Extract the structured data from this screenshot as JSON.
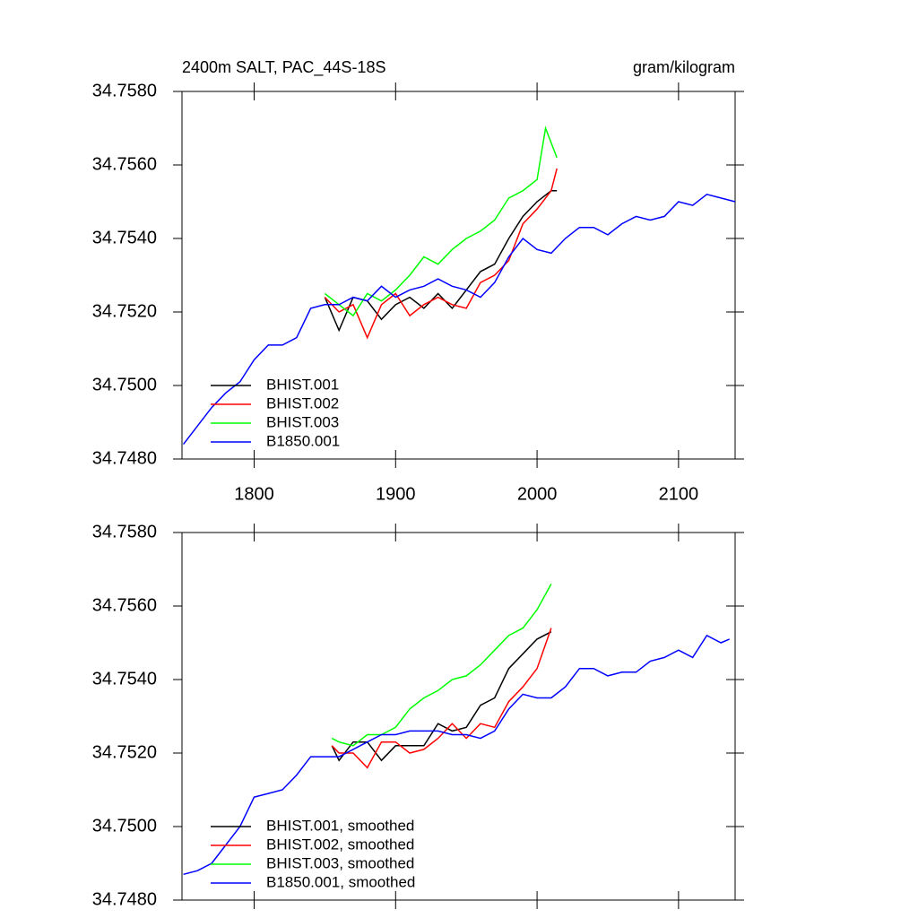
{
  "chart_data": [
    {
      "type": "line",
      "title": "2400m SALT, PAC_44S-18S",
      "units": "gram/kilogram",
      "xlim": [
        1749,
        2140
      ],
      "xticks": [
        1800,
        1900,
        2000,
        2100
      ],
      "ylim": [
        34.748,
        34.758
      ],
      "yticks": [
        {
          "value": 34.748,
          "label": "34.7480"
        },
        {
          "value": 34.75,
          "label": "34.7500"
        },
        {
          "value": 34.752,
          "label": "34.7520"
        },
        {
          "value": 34.754,
          "label": "34.7540"
        },
        {
          "value": 34.756,
          "label": "34.7560"
        },
        {
          "value": 34.758,
          "label": "34.7580"
        }
      ],
      "legend": "lower left",
      "series": [
        {
          "name": "BHIST.001",
          "color": "#000000",
          "x": [
            1850,
            1860,
            1870,
            1880,
            1890,
            1900,
            1910,
            1920,
            1930,
            1940,
            1950,
            1960,
            1970,
            1980,
            1990,
            2000,
            2010,
            2014
          ],
          "values": [
            34.7524,
            34.7515,
            34.7524,
            34.7523,
            34.7518,
            34.7522,
            34.7524,
            34.7521,
            34.7525,
            34.7521,
            34.7526,
            34.7531,
            34.7533,
            34.754,
            34.7546,
            34.755,
            34.7553,
            34.7553
          ]
        },
        {
          "name": "BHIST.002",
          "color": "#ff0000",
          "x": [
            1850,
            1860,
            1870,
            1880,
            1890,
            1900,
            1910,
            1920,
            1930,
            1940,
            1950,
            1960,
            1970,
            1980,
            1990,
            2000,
            2010,
            2014
          ],
          "values": [
            34.7524,
            34.752,
            34.7522,
            34.7513,
            34.7522,
            34.7525,
            34.7519,
            34.7522,
            34.7524,
            34.7522,
            34.7521,
            34.7528,
            34.753,
            34.7534,
            34.7544,
            34.7548,
            34.7553,
            34.7559
          ]
        },
        {
          "name": "BHIST.003",
          "color": "#00ff00",
          "x": [
            1850,
            1860,
            1870,
            1880,
            1890,
            1900,
            1910,
            1920,
            1930,
            1940,
            1950,
            1960,
            1970,
            1980,
            1990,
            2000,
            2006,
            2014
          ],
          "values": [
            34.7525,
            34.7522,
            34.7519,
            34.7525,
            34.7523,
            34.7526,
            34.753,
            34.7535,
            34.7533,
            34.7537,
            34.754,
            34.7542,
            34.7545,
            34.7551,
            34.7553,
            34.7556,
            34.757,
            34.7562
          ]
        },
        {
          "name": "B1850.001",
          "color": "#0000ff",
          "x": [
            1750,
            1760,
            1770,
            1780,
            1790,
            1800,
            1810,
            1820,
            1830,
            1840,
            1850,
            1860,
            1870,
            1880,
            1890,
            1900,
            1910,
            1920,
            1930,
            1940,
            1950,
            1960,
            1970,
            1980,
            1990,
            2000,
            2010,
            2020,
            2030,
            2040,
            2050,
            2060,
            2070,
            2080,
            2090,
            2100,
            2110,
            2120,
            2130,
            2140
          ],
          "values": [
            34.7484,
            34.7489,
            34.7494,
            34.7498,
            34.7501,
            34.7507,
            34.7511,
            34.7511,
            34.7513,
            34.7521,
            34.7522,
            34.7522,
            34.7524,
            34.7523,
            34.7527,
            34.7524,
            34.7526,
            34.7527,
            34.7529,
            34.7527,
            34.7526,
            34.7524,
            34.7528,
            34.7535,
            34.754,
            34.7537,
            34.7536,
            34.754,
            34.7543,
            34.7543,
            34.7541,
            34.7544,
            34.7546,
            34.7545,
            34.7546,
            34.755,
            34.7549,
            34.7552,
            34.7551,
            34.755
          ]
        }
      ]
    },
    {
      "type": "line",
      "xlim": [
        1749,
        2140
      ],
      "xticks": [
        1800,
        1900,
        2000,
        2100
      ],
      "ylim": [
        34.748,
        34.758
      ],
      "yticks": [
        {
          "value": 34.748,
          "label": "34.7480"
        },
        {
          "value": 34.75,
          "label": "34.7500"
        },
        {
          "value": 34.752,
          "label": "34.7520"
        },
        {
          "value": 34.754,
          "label": "34.7540"
        },
        {
          "value": 34.756,
          "label": "34.7560"
        },
        {
          "value": 34.758,
          "label": "34.7580"
        }
      ],
      "legend": "lower left",
      "series": [
        {
          "name": "BHIST.001, smoothed",
          "color": "#000000",
          "x": [
            1855,
            1860,
            1870,
            1880,
            1890,
            1900,
            1910,
            1920,
            1930,
            1940,
            1950,
            1960,
            1970,
            1980,
            1990,
            2000,
            2010
          ],
          "values": [
            34.7522,
            34.7518,
            34.7523,
            34.7523,
            34.7518,
            34.7522,
            34.7522,
            34.7522,
            34.7528,
            34.7526,
            34.7527,
            34.7533,
            34.7535,
            34.7543,
            34.7547,
            34.7551,
            34.7553
          ]
        },
        {
          "name": "BHIST.002, smoothed",
          "color": "#ff0000",
          "x": [
            1855,
            1860,
            1870,
            1880,
            1890,
            1900,
            1910,
            1920,
            1930,
            1940,
            1950,
            1960,
            1970,
            1980,
            1990,
            2000,
            2010
          ],
          "values": [
            34.7522,
            34.752,
            34.752,
            34.7516,
            34.7523,
            34.7523,
            34.752,
            34.7521,
            34.7524,
            34.7528,
            34.7524,
            34.7528,
            34.7527,
            34.7534,
            34.7538,
            34.7543,
            34.7554
          ]
        },
        {
          "name": "BHIST.003, smoothed",
          "color": "#00ff00",
          "x": [
            1855,
            1860,
            1870,
            1880,
            1890,
            1900,
            1910,
            1920,
            1930,
            1940,
            1950,
            1960,
            1970,
            1980,
            1990,
            2000,
            2010
          ],
          "values": [
            34.7524,
            34.7523,
            34.7522,
            34.7525,
            34.7525,
            34.7527,
            34.7532,
            34.7535,
            34.7537,
            34.754,
            34.7541,
            34.7544,
            34.7548,
            34.7552,
            34.7554,
            34.7559,
            34.7566
          ]
        },
        {
          "name": "B1850.001, smoothed",
          "color": "#0000ff",
          "x": [
            1750,
            1760,
            1770,
            1780,
            1790,
            1800,
            1810,
            1820,
            1830,
            1840,
            1850,
            1860,
            1870,
            1880,
            1890,
            1900,
            1910,
            1920,
            1930,
            1940,
            1950,
            1960,
            1970,
            1980,
            1990,
            2000,
            2010,
            2020,
            2030,
            2040,
            2050,
            2060,
            2070,
            2080,
            2090,
            2100,
            2110,
            2120,
            2130,
            2136
          ],
          "values": [
            34.7487,
            34.7488,
            34.749,
            34.7495,
            34.75,
            34.7508,
            34.7509,
            34.751,
            34.7514,
            34.7519,
            34.7519,
            34.7519,
            34.7521,
            34.7523,
            34.7525,
            34.7525,
            34.7526,
            34.7526,
            34.7526,
            34.7525,
            34.7525,
            34.7524,
            34.7526,
            34.7532,
            34.7536,
            34.7535,
            34.7535,
            34.7538,
            34.7543,
            34.7543,
            34.7541,
            34.7542,
            34.7542,
            34.7545,
            34.7546,
            34.7548,
            34.7546,
            34.7552,
            34.755,
            34.7551
          ]
        }
      ]
    }
  ]
}
